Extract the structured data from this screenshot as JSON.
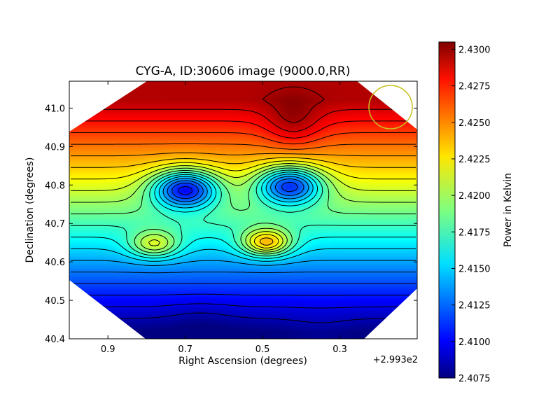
{
  "chart_data": {
    "type": "heatmap",
    "title": "CYG-A, ID:30606 image (9000.0,RR)",
    "xlabel": "Right Ascension (degrees)",
    "ylabel": "Declination (degrees)",
    "x_offset_label": "+2.993e2",
    "x_ticks": [
      {
        "value": 0.9,
        "label": "0.9"
      },
      {
        "value": 0.7,
        "label": "0.7"
      },
      {
        "value": 0.5,
        "label": "0.5"
      },
      {
        "value": 0.3,
        "label": "0.3"
      }
    ],
    "y_ticks": [
      {
        "value": 41.0,
        "label": "41.0"
      },
      {
        "value": 40.9,
        "label": "40.9"
      },
      {
        "value": 40.8,
        "label": "40.8"
      },
      {
        "value": 40.7,
        "label": "40.7"
      },
      {
        "value": 40.6,
        "label": "40.6"
      },
      {
        "value": 40.5,
        "label": "40.5"
      },
      {
        "value": 40.4,
        "label": "40.4"
      }
    ],
    "xlim": [
      1.0,
      0.1
    ],
    "ylim": [
      40.4,
      41.07
    ],
    "x_inverted": true,
    "colorbar": {
      "label": "Power in Kelvin",
      "colormap": "jet",
      "range": [
        2.4075,
        2.4305
      ],
      "ticks": [
        "2.4075",
        "2.4100",
        "2.4125",
        "2.4150",
        "2.4175",
        "2.4200",
        "2.4225",
        "2.4250",
        "2.4275",
        "2.4300"
      ]
    },
    "features": [
      {
        "kind": "minimum",
        "ra": 0.7,
        "dec": 40.79,
        "value": 2.4105
      },
      {
        "kind": "minimum",
        "ra": 0.43,
        "dec": 40.8,
        "value": 2.4115
      },
      {
        "kind": "maximum",
        "ra": 0.42,
        "dec": 40.96,
        "value": 2.4295
      },
      {
        "kind": "local-high",
        "ra": 0.49,
        "dec": 40.65,
        "value": 2.4235
      },
      {
        "kind": "local-high",
        "ra": 0.78,
        "dec": 40.645,
        "value": 2.421
      },
      {
        "kind": "minimum",
        "ra": 0.66,
        "dec": 40.45,
        "value": 2.408
      },
      {
        "kind": "minimum",
        "ra": 0.35,
        "dec": 40.42,
        "value": 2.408
      }
    ],
    "beam_marker": {
      "shape": "circle",
      "color": "#c8c020"
    },
    "contours": true,
    "grid": false
  }
}
